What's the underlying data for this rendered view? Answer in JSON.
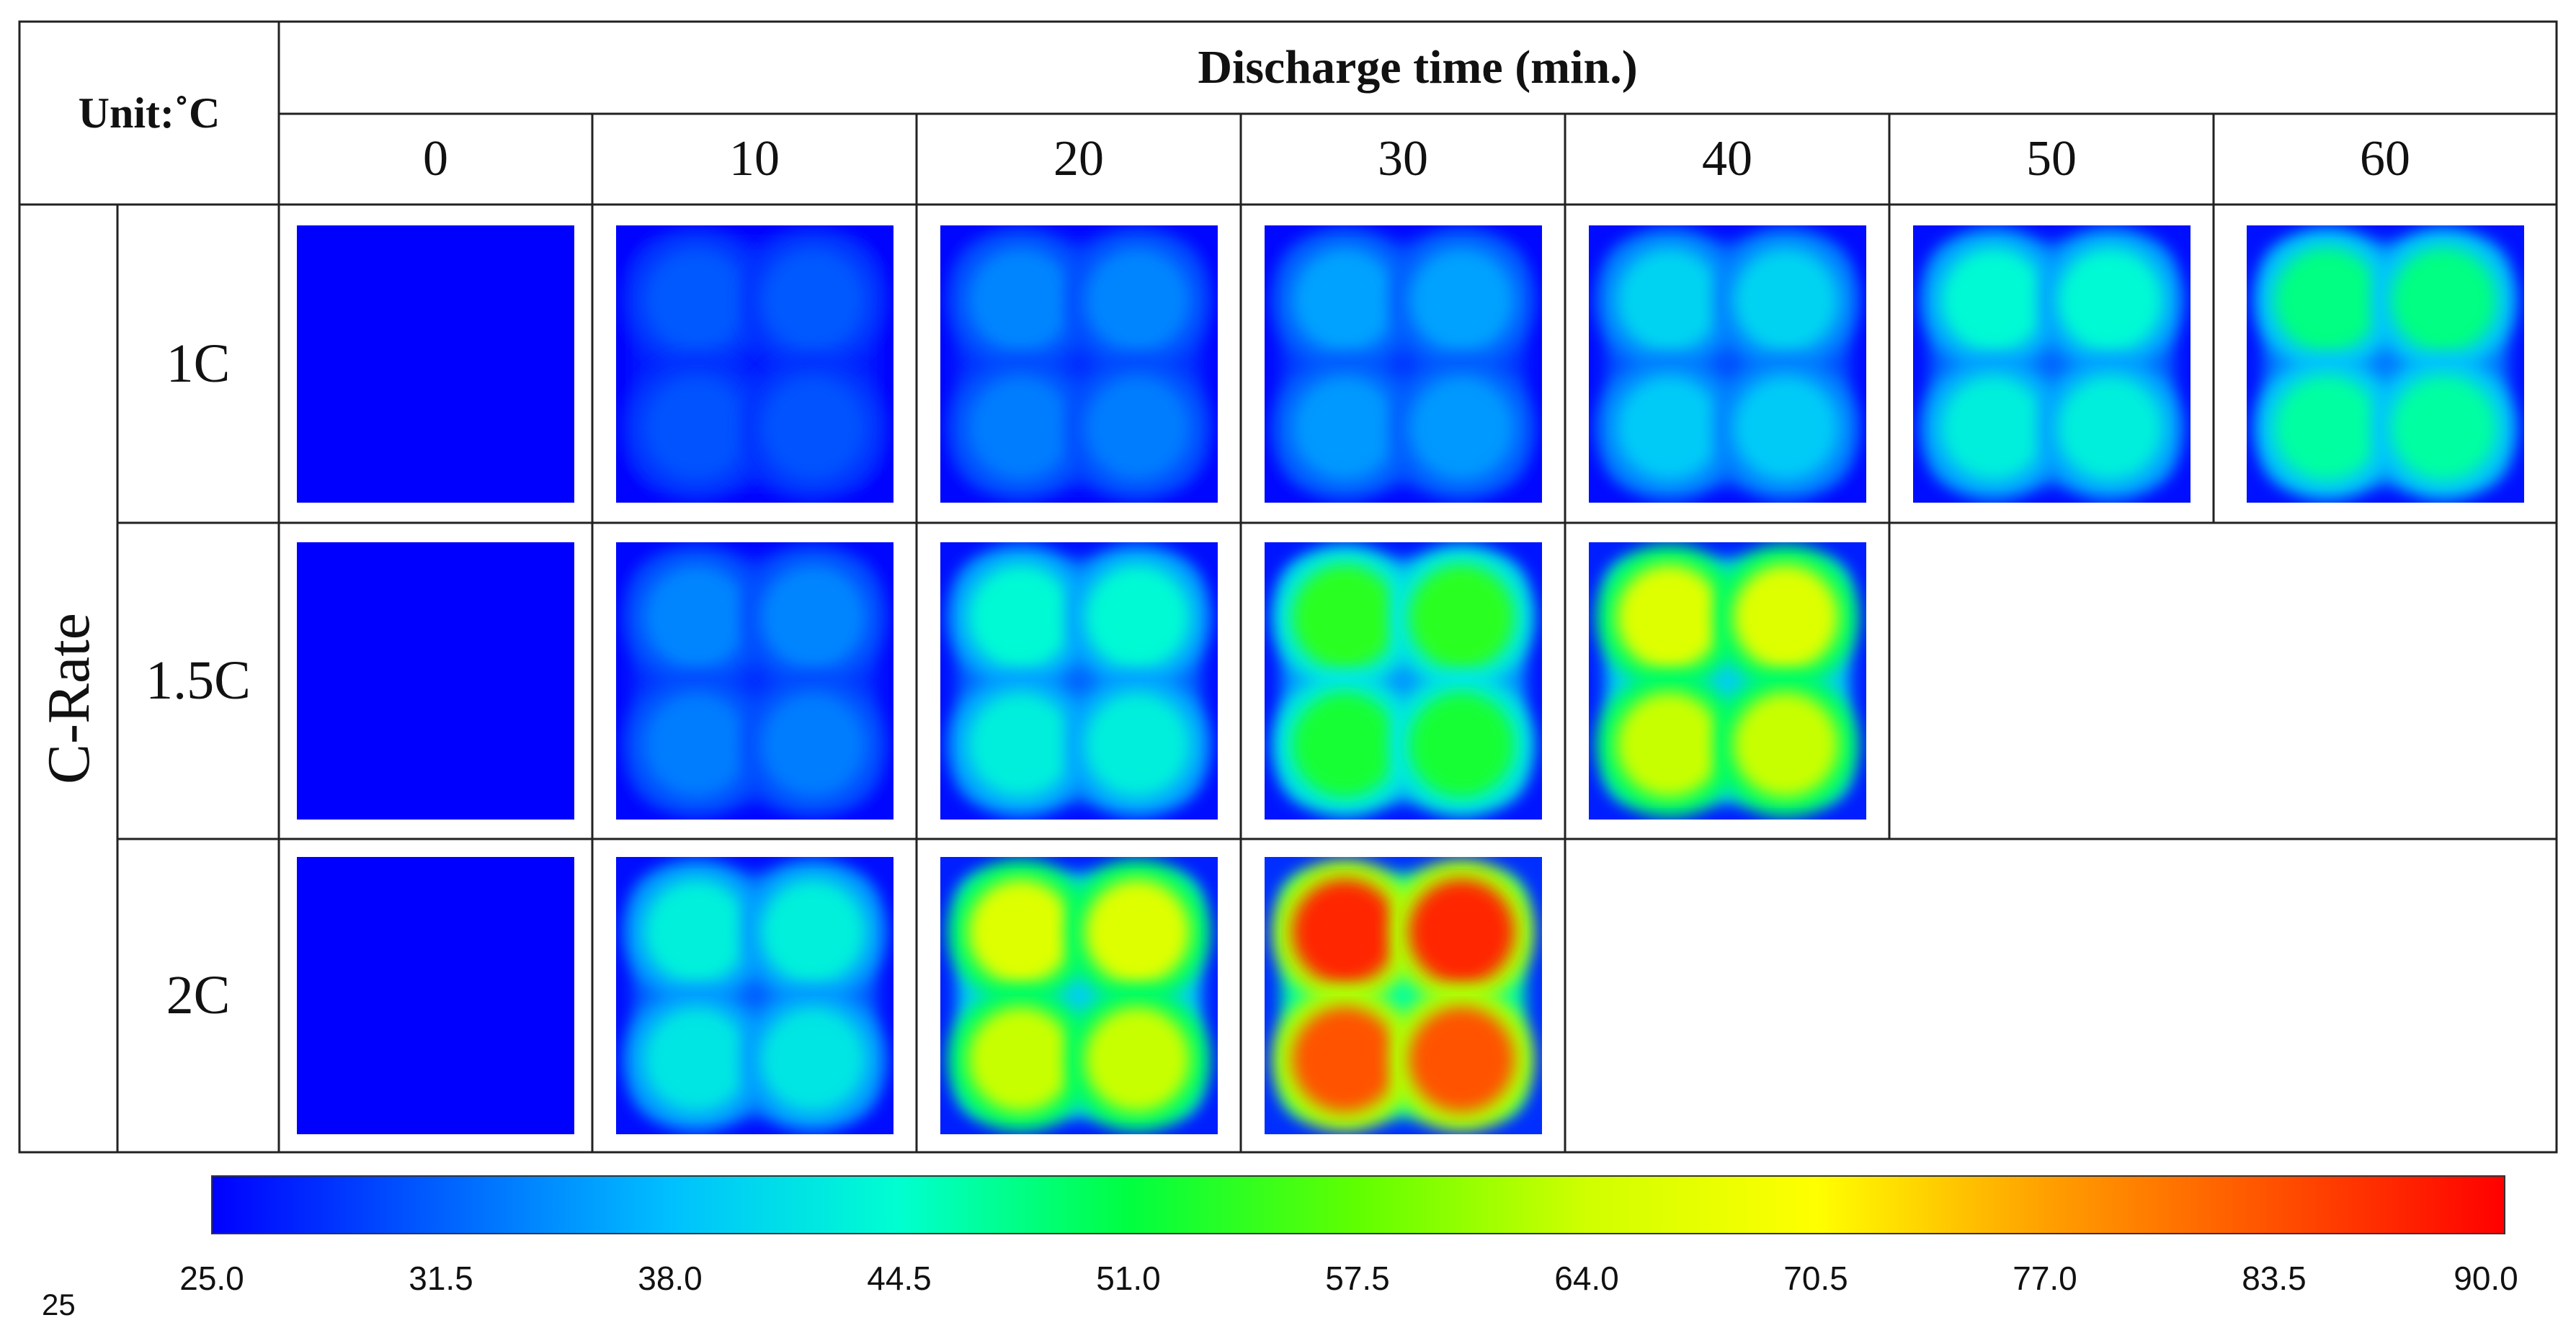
{
  "table": {
    "unit_label": "Unit:˚C",
    "header_title": "Discharge time (min.)",
    "time_columns": [
      "0",
      "10",
      "20",
      "30",
      "40",
      "50",
      "60"
    ],
    "row_group_label": "C-Rate",
    "rows": [
      {
        "label": "1C",
        "cells": [
          "25",
          "31",
          "34",
          "36",
          "40",
          "44",
          "48"
        ]
      },
      {
        "label": "1.5C",
        "cells": [
          "25",
          "34",
          "44",
          "54",
          "66"
        ]
      },
      {
        "label": "2C",
        "cells": [
          "25",
          "43",
          "66",
          "87"
        ]
      }
    ]
  },
  "colorbar": {
    "ticks": [
      "25.0",
      "31.5",
      "38.0",
      "44.5",
      "51.0",
      "57.5",
      "64.0",
      "70.5",
      "77.0",
      "83.5",
      "90.0"
    ],
    "min": 25.0,
    "max": 90.0,
    "colors": [
      "#0000ff",
      "#0060ff",
      "#00c0ff",
      "#00ffd0",
      "#00ff40",
      "#60ff00",
      "#d0ff00",
      "#ffff00",
      "#ffa000",
      "#ff5000",
      "#ff0000"
    ]
  },
  "page_number": "25"
}
